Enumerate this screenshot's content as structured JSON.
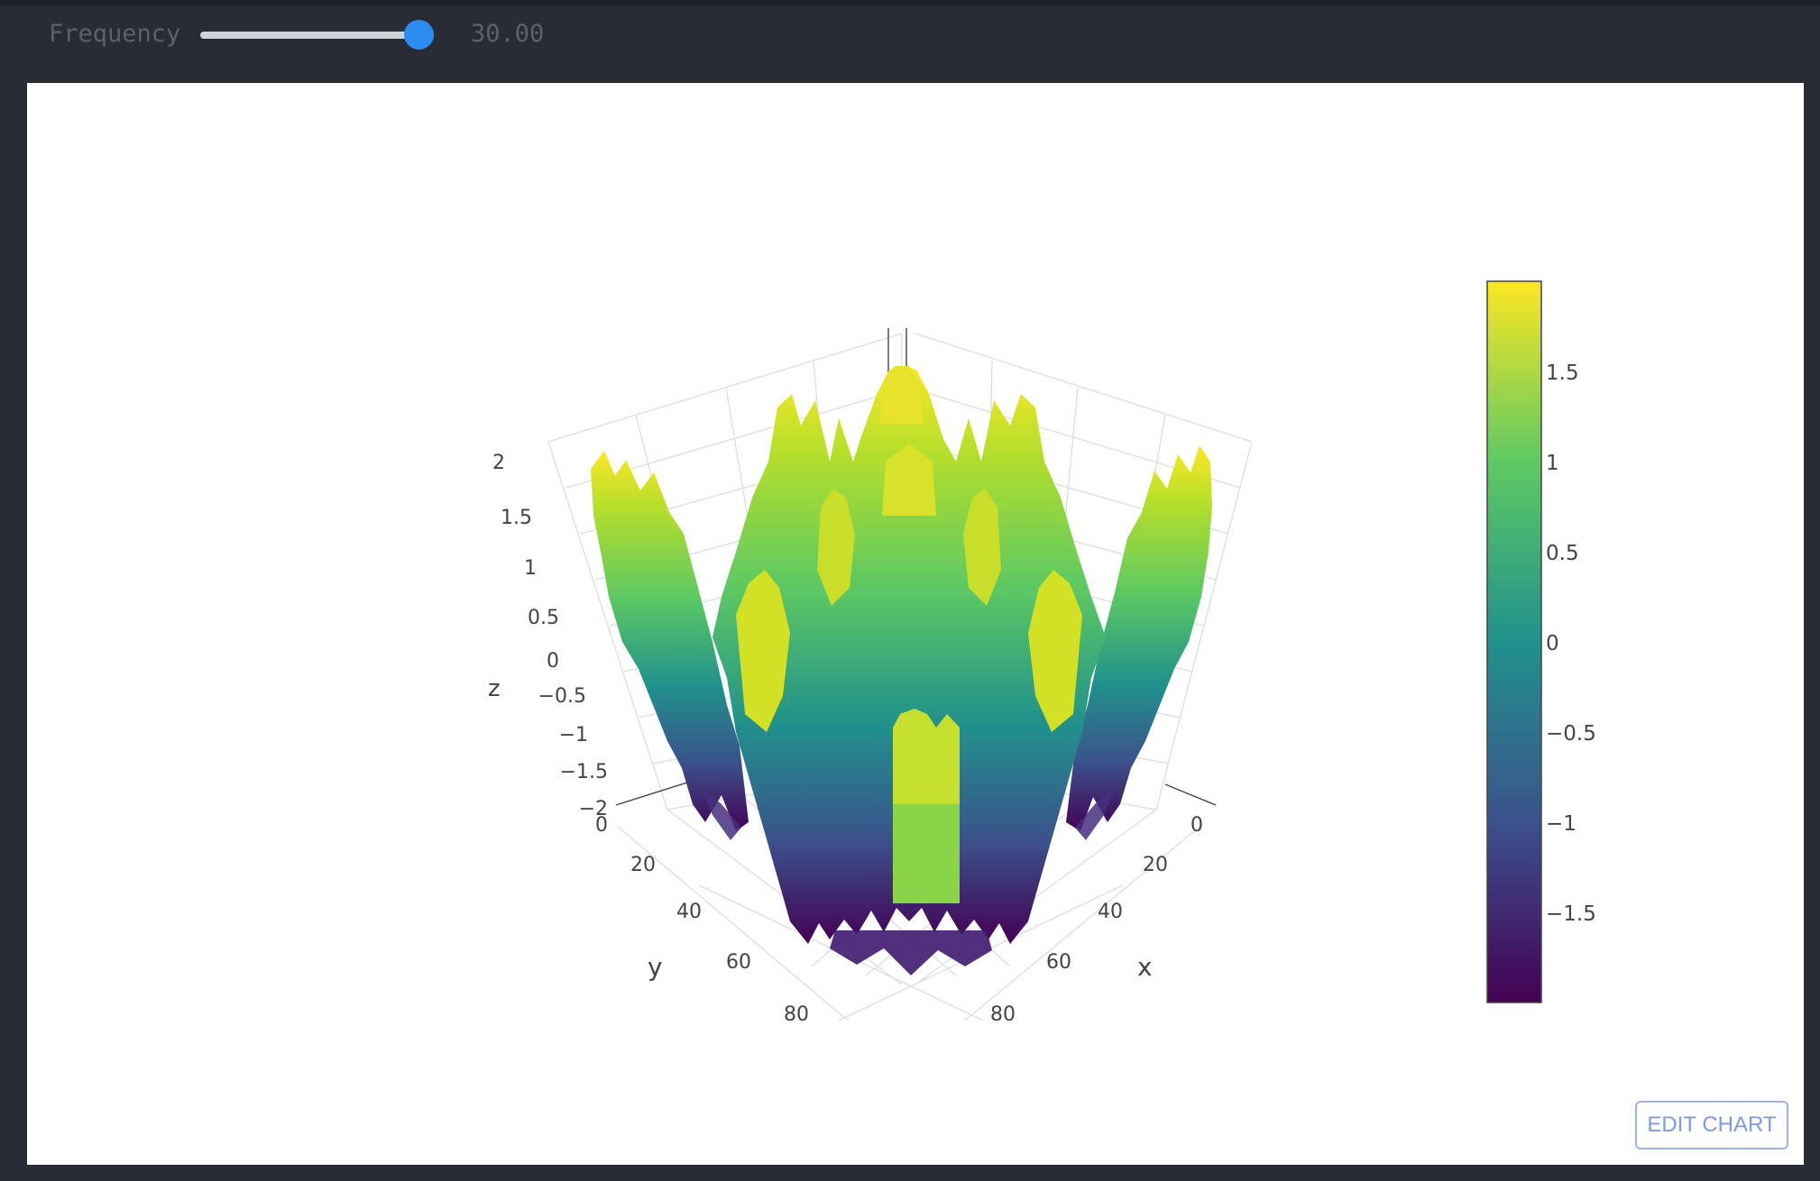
{
  "controls": {
    "slider_label": "Frequency",
    "slider_value": "30.00",
    "slider_fraction": 0.97
  },
  "chart_data": {
    "type": "surface",
    "title": "",
    "colorscale": "Viridis",
    "colorscale_stops": [
      "#440154",
      "#3b528b",
      "#21918c",
      "#5ec962",
      "#fde725"
    ],
    "x_axis": {
      "label": "x",
      "ticks": [
        "0",
        "20",
        "40",
        "60",
        "80"
      ]
    },
    "y_axis": {
      "label": "y",
      "ticks": [
        "0",
        "20",
        "40",
        "60",
        "80"
      ]
    },
    "z_axis": {
      "label": "z",
      "range": [
        -2,
        2
      ],
      "ticks": [
        "2",
        "1.5",
        "1",
        "0.5",
        "0",
        "−0.5",
        "−1",
        "−1.5",
        "−2"
      ]
    },
    "colorbar": {
      "range": [
        -2,
        1.95
      ],
      "ticks": [
        "1.5",
        "1",
        "0.5",
        "0",
        "−0.5",
        "−1",
        "−1.5"
      ]
    }
  },
  "buttons": {
    "edit_chart": "EDIT CHART"
  }
}
